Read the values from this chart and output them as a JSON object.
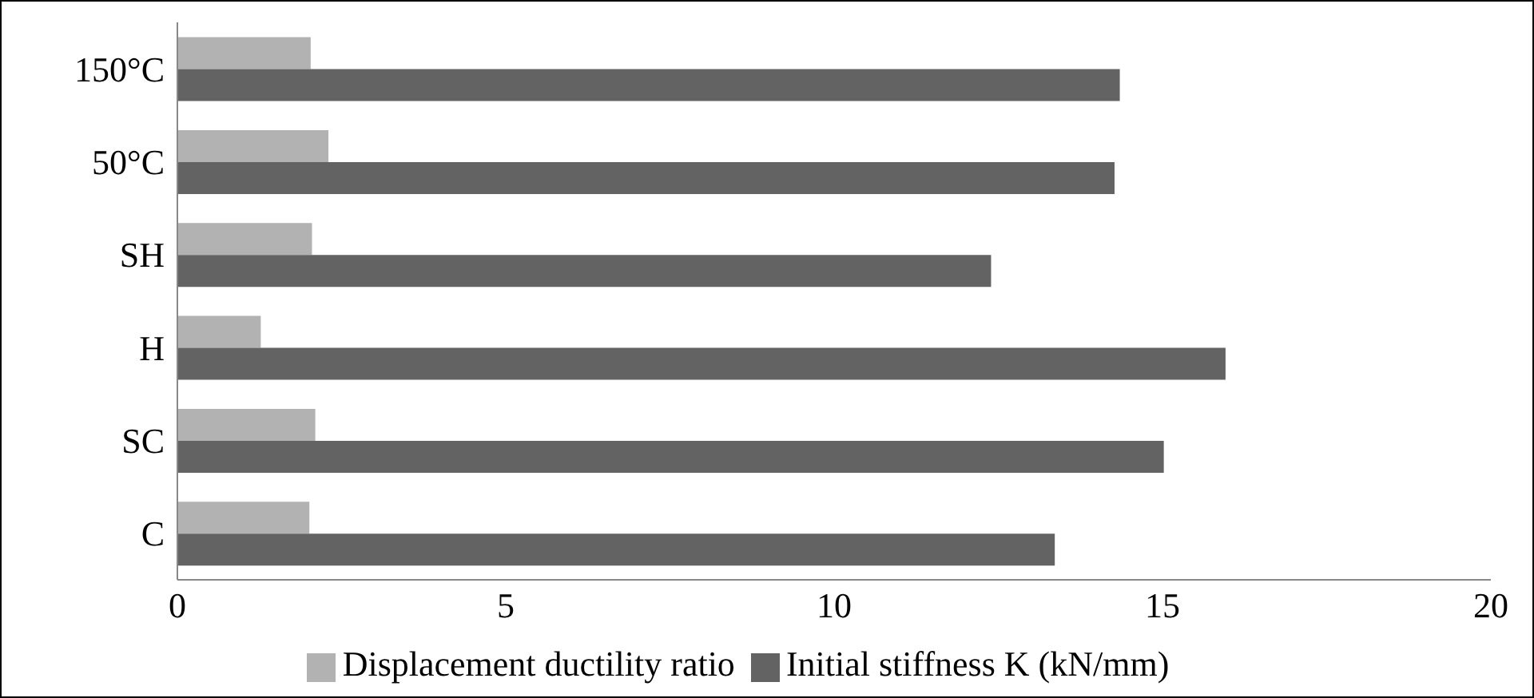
{
  "chart_data": {
    "type": "bar",
    "orientation": "horizontal",
    "categories": [
      "150°C",
      "50°C",
      "SH",
      "H",
      "SC",
      "C"
    ],
    "series": [
      {
        "name": "Displacement ductility ratio",
        "color": "#b2b2b2",
        "values": [
          2.03,
          2.3,
          2.05,
          1.27,
          2.1,
          2.01
        ]
      },
      {
        "name": "Initial stiffness K (kN/mm)",
        "color": "#636363",
        "values": [
          14.35,
          14.27,
          12.39,
          15.96,
          15.02,
          13.36
        ]
      }
    ],
    "xlim": [
      0,
      20
    ],
    "xticks": [
      0,
      5,
      10,
      15,
      20
    ],
    "grid": false,
    "legend": "bottom"
  }
}
